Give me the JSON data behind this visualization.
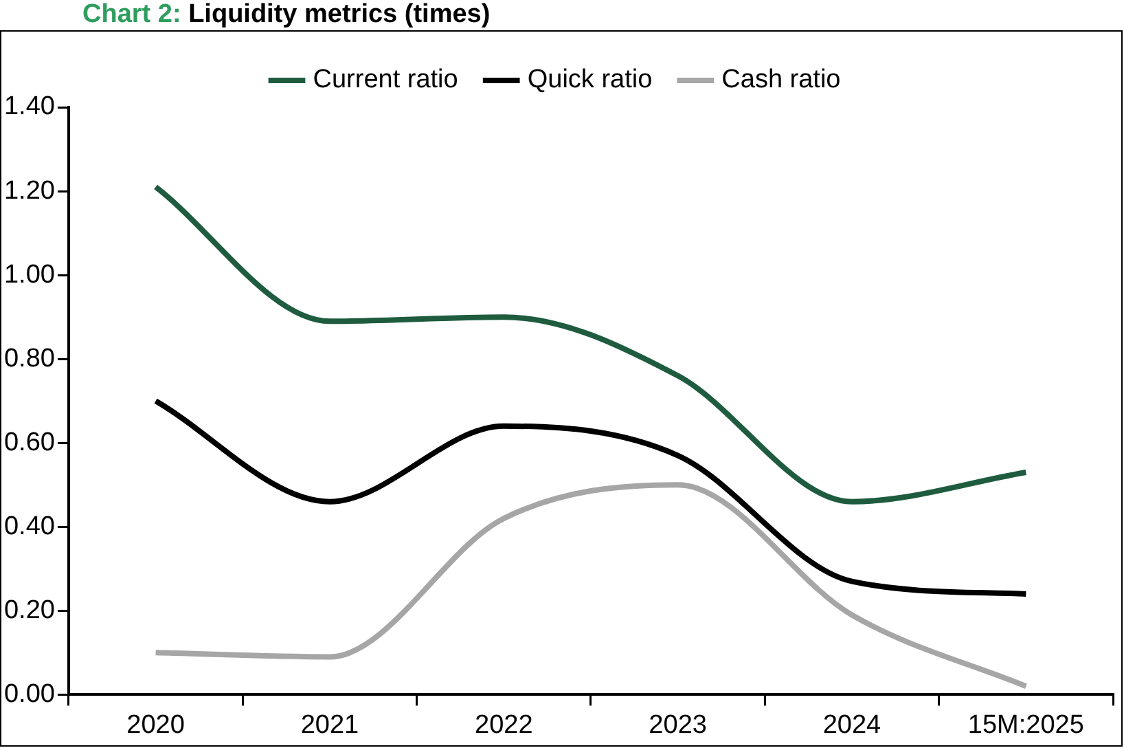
{
  "chart_data": {
    "type": "line",
    "title": "Chart 2: Liquidity metrics (times)",
    "categories": [
      "2020",
      "2021",
      "2022",
      "2023",
      "2024",
      "15M:2025"
    ],
    "series": [
      {
        "name": "Current ratio",
        "color": "#1f5c3f",
        "values": [
          1.21,
          0.89,
          0.9,
          0.76,
          0.46,
          0.53
        ]
      },
      {
        "name": "Quick ratio",
        "color": "#000000",
        "values": [
          0.7,
          0.46,
          0.64,
          0.57,
          0.27,
          0.24
        ]
      },
      {
        "name": "Cash ratio",
        "color": "#a6a6a6",
        "values": [
          0.1,
          0.09,
          0.42,
          0.5,
          0.19,
          0.02
        ]
      }
    ],
    "ylim": [
      0,
      1.4
    ],
    "yticks": [
      {
        "value": 0,
        "label": "0.00"
      },
      {
        "value": 0.2,
        "label": "0.20"
      },
      {
        "value": 0.4,
        "label": "0.40"
      },
      {
        "value": 0.6,
        "label": "0.60"
      },
      {
        "value": 0.8,
        "label": "0.80"
      },
      {
        "value": 1,
        "label": "1.00"
      },
      {
        "value": 1.2,
        "label": "1.20"
      },
      {
        "value": 1.4,
        "label": "1.40"
      }
    ],
    "grid": false,
    "legend": "top",
    "marker": "none",
    "line_style": "solid"
  }
}
